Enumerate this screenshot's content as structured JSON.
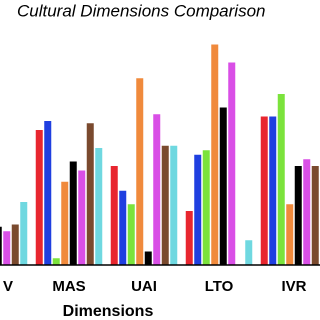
{
  "chart_data": {
    "type": "bar",
    "title": "Cultural Dimensions Comparison",
    "x_label": "Dimensions",
    "categories": [
      "V",
      "MAS",
      "UAI",
      "LTO",
      "IVR"
    ],
    "ylim": [
      0,
      100
    ],
    "series": [
      {
        "color": "#e8262f",
        "values": [
          null,
          60,
          44,
          24,
          66
        ]
      },
      {
        "color": "#1f3fe0",
        "values": [
          null,
          64,
          33,
          49,
          66
        ]
      },
      {
        "color": "#7be33c",
        "values": [
          null,
          3,
          27,
          51,
          76
        ]
      },
      {
        "color": "#f08a3c",
        "values": [
          null,
          37,
          83,
          98,
          27
        ]
      },
      {
        "color": "#000000",
        "values": [
          17,
          46,
          6,
          70,
          44
        ]
      },
      {
        "color": "#d94fe6",
        "values": [
          15,
          42,
          67,
          90,
          47
        ]
      },
      {
        "color": "#7a4a2e",
        "values": [
          18,
          63,
          53,
          0,
          44
        ]
      },
      {
        "color": "#6fd8e0",
        "values": [
          28,
          52,
          53,
          11,
          null
        ]
      }
    ]
  }
}
